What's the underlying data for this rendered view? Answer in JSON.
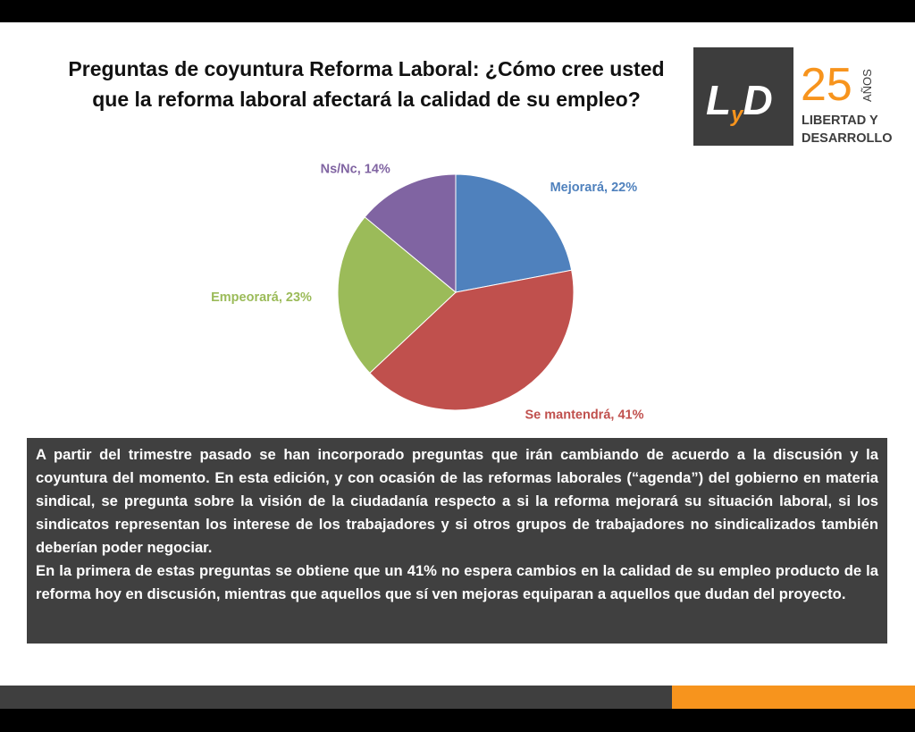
{
  "chart_data": {
    "type": "pie",
    "title": [
      "Preguntas  de coyuntura Reforma Laboral: ¿Cómo cree usted",
      "que la reforma laboral afectará la calidad de su empleo?"
    ],
    "values": [
      22,
      41,
      23,
      14
    ],
    "value_labels": [
      "Mejorará, 22%",
      "Se mantendrá, 41%",
      "Empeorará, 23%",
      "Ns/Nc, 14%"
    ],
    "colors": [
      "#4f81bd",
      "#c0504d",
      "#9bbb59",
      "#8064a2"
    ]
  },
  "logo": {
    "mark": [
      "L",
      "y",
      "D"
    ],
    "number": "25",
    "years": "AÑOS",
    "name": [
      "LIBERTAD Y",
      "DESARROLLO"
    ]
  },
  "text_box": [
    "A partir del trimestre pasado se han incorporado preguntas que irán cambiando de acuerdo a la discusión y la coyuntura del momento. En esta edición, y con ocasión de las reformas laborales (“agenda”) del gobierno en materia sindical, se pregunta sobre la visión de la ciudadanía respecto a si la reforma mejorará su situación laboral, si los sindicatos representan los interese de los trabajadores y si otros grupos de trabajadores no sindicalizados también deberían poder  negociar.",
    "En la primera de estas preguntas se obtiene que un 41% no espera cambios en la calidad de su empleo producto de la reforma hoy en discusión, mientras que aquellos que sí ven mejoras equiparan a aquellos que dudan del proyecto."
  ]
}
